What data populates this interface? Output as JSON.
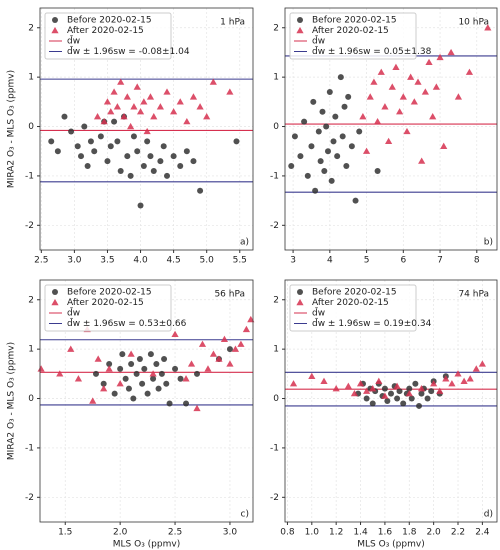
{
  "chart_data": [
    {
      "type": "scatter",
      "title": "1 hPa",
      "panel_label": "a)",
      "ylabel": "MIRA2 O₃ - MLS O₃ (ppmv)",
      "xlim": [
        2.48,
        5.7
      ],
      "ylim": [
        -2.5,
        2.4
      ],
      "xticks": [
        2.5,
        {
          "value": 3,
          "label": "3.0"
        },
        3.5,
        {
          "value": 4,
          "label": "4.0"
        },
        4.5,
        {
          "value": 5,
          "label": "5.0"
        },
        5.5
      ],
      "yticks": [
        -2,
        -1,
        0,
        1,
        2
      ],
      "grid": true,
      "legend": "upper left",
      "series": [
        {
          "name": "Before 2020-02-15",
          "color": "#333333",
          "marker": "circle",
          "x": [
            2.65,
            2.75,
            2.85,
            2.95,
            3.05,
            3.1,
            3.15,
            3.2,
            3.25,
            3.3,
            3.4,
            3.45,
            3.5,
            3.55,
            3.6,
            3.65,
            3.7,
            3.75,
            3.8,
            3.85,
            3.9,
            3.95,
            4.0,
            4.05,
            4.1,
            4.15,
            4.2,
            4.3,
            4.35,
            4.4,
            4.5,
            4.6,
            4.7,
            4.8,
            4.9,
            5.45
          ],
          "values": [
            -0.3,
            -0.5,
            0.2,
            -0.1,
            -0.4,
            -0.6,
            0.0,
            -0.8,
            -0.3,
            -0.5,
            -0.2,
            0.1,
            -0.7,
            -0.4,
            0.1,
            -0.3,
            -0.9,
            0.2,
            -0.6,
            -1.0,
            -0.2,
            -0.5,
            -1.6,
            -0.8,
            -0.3,
            -0.6,
            -0.9,
            -0.7,
            -0.4,
            -1.0,
            -0.6,
            -0.8,
            -0.5,
            -0.7,
            -1.3,
            -0.3
          ]
        },
        {
          "name": "After 2020-02-15",
          "color": "#d6304f",
          "marker": "triangle",
          "x": [
            3.35,
            3.45,
            3.5,
            3.55,
            3.6,
            3.65,
            3.7,
            3.75,
            3.8,
            3.85,
            3.9,
            3.95,
            4.0,
            4.05,
            4.1,
            4.15,
            4.2,
            4.3,
            4.4,
            4.5,
            4.6,
            4.7,
            4.8,
            4.9,
            5.0,
            5.1,
            5.35
          ],
          "values": [
            0.2,
            0.1,
            0.5,
            0.3,
            0.7,
            0.4,
            0.9,
            0.2,
            0.6,
            0.0,
            0.4,
            0.8,
            0.3,
            0.5,
            -0.1,
            0.6,
            0.2,
            0.4,
            0.7,
            0.3,
            0.5,
            0.1,
            0.6,
            0.4,
            0.2,
            0.9,
            0.7
          ]
        }
      ],
      "mean": -0.08,
      "spread": 1.04,
      "mean_label": "d̄w",
      "band_label": "d̄w ± 1.96sw = -0.08±1.04",
      "mean_color": "#d6304f",
      "band_color": "#3b3b8f"
    },
    {
      "type": "scatter",
      "title": "10 hPa",
      "panel_label": "b)",
      "xlim": [
        2.78,
        8.55
      ],
      "ylim": [
        -2.5,
        2.4
      ],
      "xticks": [
        3,
        4,
        5,
        6,
        7,
        8
      ],
      "yticks": [
        -2,
        -1,
        0,
        1,
        2
      ],
      "grid": true,
      "legend": "upper left",
      "series": [
        {
          "name": "Before 2020-02-15",
          "color": "#333333",
          "marker": "circle",
          "x": [
            2.95,
            3.05,
            3.2,
            3.3,
            3.4,
            3.5,
            3.55,
            3.6,
            3.7,
            3.75,
            3.8,
            3.85,
            3.9,
            3.95,
            4.0,
            4.05,
            4.1,
            4.15,
            4.2,
            4.3,
            4.35,
            4.4,
            4.45,
            4.5,
            4.6,
            4.7,
            4.8,
            5.3
          ],
          "values": [
            -0.8,
            -0.2,
            -0.6,
            0.1,
            -1.0,
            -0.4,
            0.5,
            -1.3,
            -0.1,
            -0.7,
            0.3,
            -0.9,
            0.0,
            -0.5,
            0.7,
            -1.1,
            -0.3,
            0.2,
            -0.6,
            1.0,
            -0.2,
            0.4,
            -0.8,
            0.6,
            -0.4,
            -1.5,
            -0.1,
            -0.9
          ]
        },
        {
          "name": "After 2020-02-15",
          "color": "#d6304f",
          "marker": "triangle",
          "x": [
            4.9,
            5.0,
            5.1,
            5.2,
            5.3,
            5.4,
            5.5,
            5.6,
            5.7,
            5.8,
            5.9,
            6.0,
            6.1,
            6.2,
            6.3,
            6.4,
            6.5,
            6.6,
            6.7,
            6.8,
            6.9,
            7.0,
            7.1,
            7.3,
            7.5,
            7.8,
            8.3
          ],
          "values": [
            0.2,
            -0.5,
            0.6,
            0.9,
            0.1,
            1.1,
            0.4,
            -0.3,
            0.8,
            1.2,
            0.3,
            0.6,
            -0.1,
            1.0,
            0.5,
            0.9,
            -0.7,
            0.7,
            1.3,
            0.2,
            0.8,
            1.4,
            -0.4,
            1.5,
            0.6,
            1.1,
            2.0
          ]
        }
      ],
      "mean": 0.05,
      "spread": 1.38,
      "mean_label": "d̄w",
      "band_label": "d̄w ± 1.96sw = 0.05±1.38",
      "mean_color": "#d6304f",
      "band_color": "#3b3b8f"
    },
    {
      "type": "scatter",
      "title": "56 hPa",
      "panel_label": "c)",
      "ylabel": "MIRA2 O₃ - MLS O₃ (ppmv)",
      "xlabel": "MLS O₃ (ppmv)",
      "xlim": [
        1.27,
        3.21
      ],
      "ylim": [
        -2.5,
        2.4
      ],
      "xticks": [
        1.5,
        {
          "value": 2,
          "label": "2.0"
        },
        2.5,
        {
          "value": 3,
          "label": "3.0"
        }
      ],
      "yticks": [
        -2,
        -1,
        0,
        1,
        2
      ],
      "grid": true,
      "legend": "upper left",
      "series": [
        {
          "name": "Before 2020-02-15",
          "color": "#333333",
          "marker": "circle",
          "x": [
            1.78,
            1.85,
            1.9,
            1.95,
            2.0,
            2.02,
            2.05,
            2.08,
            2.1,
            2.12,
            2.15,
            2.18,
            2.2,
            2.22,
            2.25,
            2.28,
            2.3,
            2.33,
            2.35,
            2.38,
            2.4,
            2.42,
            2.45,
            2.5,
            2.55,
            2.6,
            2.7,
            2.9,
            3.0
          ],
          "values": [
            0.5,
            0.3,
            0.7,
            0.1,
            0.6,
            0.9,
            0.4,
            0.2,
            0.7,
            0.0,
            0.5,
            0.8,
            0.3,
            0.6,
            0.1,
            0.9,
            0.4,
            0.7,
            0.2,
            0.5,
            0.8,
            0.3,
            -0.1,
            0.6,
            0.4,
            -0.1,
            0.5,
            0.8,
            1.0
          ]
        },
        {
          "name": "After 2020-02-15",
          "color": "#d6304f",
          "marker": "triangle",
          "x": [
            1.28,
            1.45,
            1.55,
            1.62,
            1.7,
            1.75,
            1.8,
            1.85,
            1.9,
            2.0,
            2.1,
            2.3,
            2.5,
            2.6,
            2.65,
            2.7,
            2.75,
            2.8,
            2.85,
            2.9,
            2.95,
            3.0,
            3.05,
            3.1,
            3.15,
            3.19
          ],
          "values": [
            0.6,
            0.5,
            1.0,
            0.4,
            1.4,
            -0.05,
            0.8,
            0.2,
            0.6,
            0.3,
            0.9,
            0.5,
            1.3,
            0.4,
            0.7,
            -0.2,
            1.1,
            0.6,
            0.9,
            0.8,
            1.2,
            0.7,
            1.0,
            1.1,
            1.4,
            1.6
          ]
        }
      ],
      "mean": 0.53,
      "spread": 0.66,
      "mean_label": "d̄w",
      "band_label": "d̄w ± 1.96sw = 0.53±0.66",
      "mean_color": "#d6304f",
      "band_color": "#3b3b8f"
    },
    {
      "type": "scatter",
      "title": "74 hPa",
      "panel_label": "d)",
      "xlabel": "MLS O₃ (ppmv)",
      "xlim": [
        0.78,
        2.52
      ],
      "ylim": [
        -2.5,
        2.4
      ],
      "xticks": [
        0.8,
        {
          "value": 1,
          "label": "1.0"
        },
        1.2,
        1.4,
        1.6,
        1.8,
        {
          "value": 2,
          "label": "2.0"
        },
        2.2,
        2.4
      ],
      "yticks": [
        -2,
        -1,
        0,
        1,
        2
      ],
      "grid": true,
      "legend": "upper left",
      "series": [
        {
          "name": "Before 2020-02-15",
          "color": "#333333",
          "marker": "circle",
          "x": [
            1.38,
            1.42,
            1.45,
            1.48,
            1.5,
            1.52,
            1.55,
            1.58,
            1.6,
            1.62,
            1.65,
            1.68,
            1.7,
            1.72,
            1.75,
            1.78,
            1.8,
            1.82,
            1.85,
            1.88,
            1.9,
            1.92,
            1.95,
            1.98,
            2.0,
            2.05,
            2.1
          ],
          "values": [
            0.1,
            0.3,
            0.0,
            0.2,
            -0.1,
            0.15,
            0.3,
            0.05,
            0.2,
            -0.05,
            0.1,
            0.25,
            0.0,
            0.15,
            -0.1,
            0.1,
            0.2,
            0.0,
            0.3,
            -0.15,
            0.1,
            0.2,
            0.0,
            0.15,
            0.35,
            0.1,
            0.45
          ]
        },
        {
          "name": "After 2020-02-15",
          "color": "#d6304f",
          "marker": "triangle",
          "x": [
            0.85,
            1.0,
            1.1,
            1.2,
            1.3,
            1.35,
            1.4,
            1.45,
            1.5,
            1.55,
            1.6,
            1.7,
            1.8,
            1.9,
            2.0,
            2.05,
            2.1,
            2.15,
            2.2,
            2.25,
            2.3,
            2.35,
            2.4
          ],
          "values": [
            0.3,
            0.45,
            0.35,
            0.2,
            0.25,
            0.1,
            0.3,
            0.15,
            0.2,
            0.35,
            0.05,
            0.25,
            0.1,
            0.2,
            0.3,
            0.15,
            0.4,
            0.3,
            0.5,
            0.35,
            0.4,
            0.6,
            0.7
          ]
        }
      ],
      "mean": 0.19,
      "spread": 0.34,
      "mean_label": "d̄w",
      "band_label": "d̄w ± 1.96sw = 0.19±0.34",
      "mean_color": "#d6304f",
      "band_color": "#3b3b8f"
    }
  ]
}
